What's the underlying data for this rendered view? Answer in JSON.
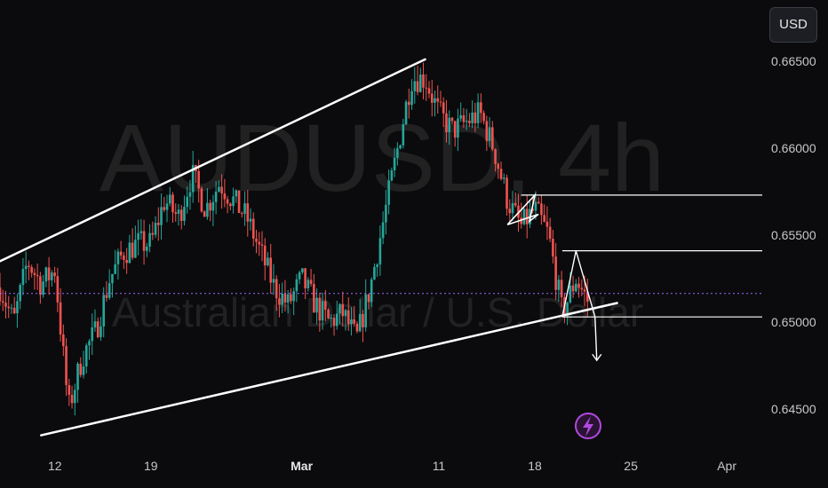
{
  "currency_button": {
    "label": "USD"
  },
  "watermark": {
    "symbol": "AUDUSD, 4h",
    "description": "Australian Dollar / U.S. Dollar"
  },
  "colors": {
    "background": "#0b0b0d",
    "up": "#26a69a",
    "down": "#ef5350",
    "drawing": "#ffffff",
    "price_line": "#9b6bff",
    "event_marker": "#b04adf"
  },
  "icons": {
    "event_marker": "lightning-bolt-icon"
  },
  "chart_data": {
    "type": "candlestick",
    "title": "",
    "symbol": "AUDUSD",
    "interval": "4h",
    "y_axis": {
      "side": "right",
      "range": [
        0.642,
        0.668
      ],
      "ticks": [
        "0.64500",
        "0.65000",
        "0.65500",
        "0.66000",
        "0.66500"
      ],
      "tick_values": [
        0.645,
        0.65,
        0.655,
        0.66,
        0.665
      ]
    },
    "x_axis": {
      "range": [
        "2024-02-08",
        "2024-04-03"
      ],
      "ticks": [
        {
          "label": "12",
          "date": "2024-02-12",
          "bold": false
        },
        {
          "label": "19",
          "date": "2024-02-19",
          "bold": false
        },
        {
          "label": "Mar",
          "date": "2024-03-01",
          "bold": true
        },
        {
          "label": "11",
          "date": "2024-03-11",
          "bold": false
        },
        {
          "label": "18",
          "date": "2024-03-18",
          "bold": false
        },
        {
          "label": "25",
          "date": "2024-03-25",
          "bold": false
        },
        {
          "label": "Apr",
          "date": "2024-04-01",
          "bold": false
        }
      ]
    },
    "price_path": [
      [
        "2024-02-08",
        0.652
      ],
      [
        "2024-02-09",
        0.65
      ],
      [
        "2024-02-10",
        0.6535
      ],
      [
        "2024-02-11",
        0.6522
      ],
      [
        "2024-02-12",
        0.653
      ],
      [
        "2024-02-13",
        0.645
      ],
      [
        "2024-02-14",
        0.648
      ],
      [
        "2024-02-15",
        0.6495
      ],
      [
        "2024-02-16",
        0.6525
      ],
      [
        "2024-02-17",
        0.654
      ],
      [
        "2024-02-18",
        0.6545
      ],
      [
        "2024-02-19",
        0.6545
      ],
      [
        "2024-02-20",
        0.657
      ],
      [
        "2024-02-21",
        0.656
      ],
      [
        "2024-02-22",
        0.6585
      ],
      [
        "2024-02-23",
        0.6565
      ],
      [
        "2024-02-24",
        0.658
      ],
      [
        "2024-02-25",
        0.657
      ],
      [
        "2024-02-26",
        0.656
      ],
      [
        "2024-02-27",
        0.654
      ],
      [
        "2024-02-28",
        0.652
      ],
      [
        "2024-02-29",
        0.651
      ],
      [
        "2024-03-01",
        0.6525
      ],
      [
        "2024-03-02",
        0.651
      ],
      [
        "2024-03-03",
        0.65
      ],
      [
        "2024-03-04",
        0.6505
      ],
      [
        "2024-03-05",
        0.649
      ],
      [
        "2024-03-06",
        0.652
      ],
      [
        "2024-03-07",
        0.656
      ],
      [
        "2024-03-08",
        0.66
      ],
      [
        "2024-03-09",
        0.664
      ],
      [
        "2024-03-10",
        0.664
      ],
      [
        "2024-03-11",
        0.662
      ],
      [
        "2024-03-12",
        0.661
      ],
      [
        "2024-03-13",
        0.6615
      ],
      [
        "2024-03-14",
        0.662
      ],
      [
        "2024-03-15",
        0.66
      ],
      [
        "2024-03-16",
        0.657
      ],
      [
        "2024-03-17",
        0.6555
      ],
      [
        "2024-03-18",
        0.6565
      ],
      [
        "2024-03-19",
        0.655
      ],
      [
        "2024-03-20",
        0.6505
      ],
      [
        "2024-03-21",
        0.6525
      ],
      [
        "2024-03-22",
        0.651
      ]
    ],
    "last_price": 0.65165,
    "drawings": {
      "channel_upper": [
        [
          "2024-02-08",
          0.6535
        ],
        [
          "2024-03-10",
          0.6651
        ]
      ],
      "channel_lower": [
        [
          "2024-02-11",
          0.6435
        ],
        [
          "2024-03-24",
          0.6511
        ]
      ],
      "horizontal_levels": [
        0.6573,
        0.6541,
        0.6503
      ],
      "small_wedge": [
        [
          "2024-03-16",
          0.6556
        ],
        [
          "2024-03-18",
          0.6573
        ]
      ],
      "projection_path": [
        [
          "2024-03-20",
          0.6503
        ],
        [
          "2024-03-21",
          0.6541
        ],
        [
          "2024-03-22",
          0.6503
        ],
        [
          "2024-03-22",
          0.6478
        ]
      ]
    }
  }
}
